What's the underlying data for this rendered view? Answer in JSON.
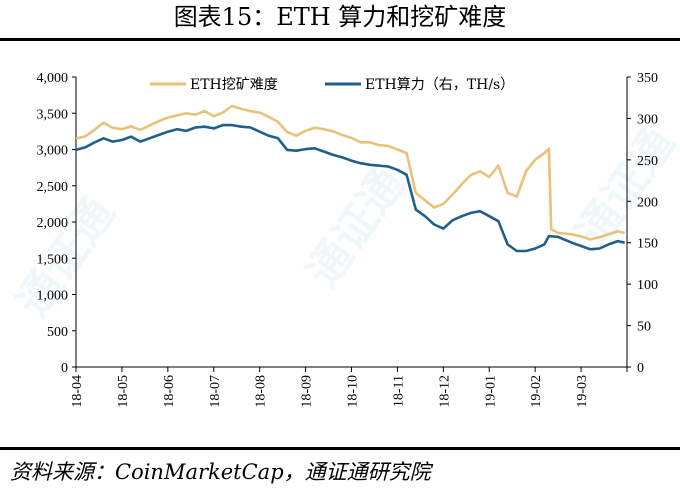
{
  "title": "图表15：ETH 算力和挖矿难度",
  "source": "资料来源：CoinMarketCap，通证通研究院",
  "watermark": "通证通",
  "colors": {
    "difficulty": "#e8c27a",
    "hashrate": "#1f5f8b",
    "axis": "#000000"
  },
  "chart_data": {
    "type": "line",
    "title": "",
    "xlabel": "",
    "ylabel": "",
    "ylabel_right": "",
    "x_ticks": [
      "18-04",
      "18-05",
      "18-06",
      "18-07",
      "18-08",
      "18-09",
      "18-10",
      "18-11",
      "18-12",
      "19-01",
      "19-02",
      "19-03"
    ],
    "y_left": {
      "lim": [
        0,
        4000
      ],
      "ticks": [
        "0",
        "500",
        "1,000",
        "1,500",
        "2,000",
        "2,500",
        "3,000",
        "3,500",
        "4,000"
      ]
    },
    "y_right": {
      "lim": [
        0,
        350
      ],
      "ticks": [
        "0",
        "50",
        "100",
        "150",
        "200",
        "250",
        "300",
        "350"
      ]
    },
    "legend_position": "top",
    "series": [
      {
        "name": "ETH挖矿难度",
        "axis": "left",
        "points": [
          [
            0,
            3150
          ],
          [
            0.2,
            3180
          ],
          [
            0.4,
            3270
          ],
          [
            0.6,
            3370
          ],
          [
            0.8,
            3300
          ],
          [
            1.0,
            3280
          ],
          [
            1.2,
            3320
          ],
          [
            1.4,
            3270
          ],
          [
            1.6,
            3330
          ],
          [
            1.8,
            3390
          ],
          [
            2.0,
            3440
          ],
          [
            2.2,
            3470
          ],
          [
            2.4,
            3500
          ],
          [
            2.6,
            3480
          ],
          [
            2.8,
            3530
          ],
          [
            3.0,
            3460
          ],
          [
            3.2,
            3510
          ],
          [
            3.4,
            3600
          ],
          [
            3.6,
            3560
          ],
          [
            3.8,
            3530
          ],
          [
            4.0,
            3510
          ],
          [
            4.2,
            3450
          ],
          [
            4.4,
            3380
          ],
          [
            4.6,
            3240
          ],
          [
            4.8,
            3190
          ],
          [
            5.0,
            3260
          ],
          [
            5.2,
            3300
          ],
          [
            5.4,
            3280
          ],
          [
            5.6,
            3250
          ],
          [
            5.8,
            3200
          ],
          [
            6.0,
            3160
          ],
          [
            6.2,
            3100
          ],
          [
            6.4,
            3100
          ],
          [
            6.6,
            3060
          ],
          [
            6.8,
            3050
          ],
          [
            7.0,
            3000
          ],
          [
            7.2,
            2950
          ],
          [
            7.4,
            2400
          ],
          [
            7.6,
            2300
          ],
          [
            7.8,
            2200
          ],
          [
            8.0,
            2250
          ],
          [
            8.2,
            2380
          ],
          [
            8.4,
            2520
          ],
          [
            8.6,
            2650
          ],
          [
            8.8,
            2700
          ],
          [
            9.0,
            2620
          ],
          [
            9.2,
            2780
          ],
          [
            9.4,
            2400
          ],
          [
            9.6,
            2350
          ],
          [
            9.8,
            2700
          ],
          [
            10.0,
            2860
          ],
          [
            10.2,
            2950
          ],
          [
            10.3,
            3010
          ],
          [
            10.35,
            1900
          ],
          [
            10.5,
            1850
          ],
          [
            10.8,
            1830
          ],
          [
            11.0,
            1800
          ],
          [
            11.2,
            1760
          ],
          [
            11.4,
            1790
          ],
          [
            11.6,
            1830
          ],
          [
            11.8,
            1870
          ],
          [
            11.95,
            1850
          ]
        ]
      },
      {
        "name": "ETH算力（右，TH/s）",
        "axis": "right",
        "points": [
          [
            0,
            262
          ],
          [
            0.2,
            265
          ],
          [
            0.4,
            271
          ],
          [
            0.6,
            276
          ],
          [
            0.8,
            272
          ],
          [
            1.0,
            274
          ],
          [
            1.2,
            278
          ],
          [
            1.4,
            272
          ],
          [
            1.6,
            276
          ],
          [
            1.8,
            280
          ],
          [
            2.0,
            284
          ],
          [
            2.2,
            287
          ],
          [
            2.4,
            285
          ],
          [
            2.6,
            289
          ],
          [
            2.8,
            290
          ],
          [
            3.0,
            288
          ],
          [
            3.2,
            292
          ],
          [
            3.4,
            292
          ],
          [
            3.6,
            290
          ],
          [
            3.8,
            289
          ],
          [
            4.0,
            284
          ],
          [
            4.2,
            279
          ],
          [
            4.4,
            276
          ],
          [
            4.6,
            262
          ],
          [
            4.8,
            261
          ],
          [
            5.0,
            263
          ],
          [
            5.2,
            264
          ],
          [
            5.4,
            260
          ],
          [
            5.6,
            256
          ],
          [
            5.8,
            253
          ],
          [
            6.0,
            249
          ],
          [
            6.2,
            246
          ],
          [
            6.4,
            244
          ],
          [
            6.6,
            243
          ],
          [
            6.8,
            242
          ],
          [
            7.0,
            238
          ],
          [
            7.2,
            232
          ],
          [
            7.4,
            190
          ],
          [
            7.6,
            182
          ],
          [
            7.8,
            172
          ],
          [
            8.0,
            167
          ],
          [
            8.2,
            177
          ],
          [
            8.4,
            182
          ],
          [
            8.6,
            186
          ],
          [
            8.8,
            188
          ],
          [
            9.0,
            182
          ],
          [
            9.2,
            176
          ],
          [
            9.4,
            148
          ],
          [
            9.6,
            140
          ],
          [
            9.8,
            140
          ],
          [
            10.0,
            143
          ],
          [
            10.2,
            148
          ],
          [
            10.3,
            158
          ],
          [
            10.5,
            157
          ],
          [
            10.8,
            150
          ],
          [
            11.0,
            146
          ],
          [
            11.2,
            142
          ],
          [
            11.4,
            143
          ],
          [
            11.6,
            148
          ],
          [
            11.8,
            152
          ],
          [
            11.95,
            150
          ]
        ]
      }
    ]
  }
}
